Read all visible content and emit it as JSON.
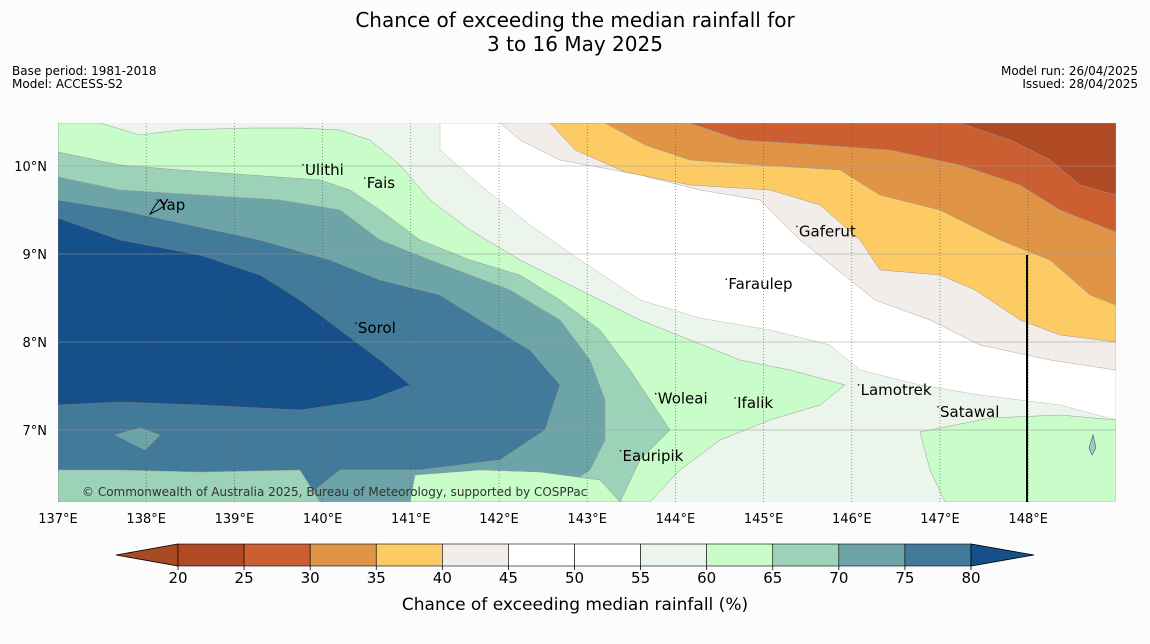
{
  "title_line1": "Chance of exceeding the median rainfall for",
  "title_line2": "3 to 16 May 2025",
  "base_period": "Base period: 1981-2018",
  "model": "Model: ACCESS-S2",
  "model_run": "Model run: 26/04/2025",
  "issued": "Issued: 28/04/2025",
  "copyright": "© Commonwealth of Australia 2025, Bureau of Meteorology, supported by COSPPac",
  "lon_ticks": [
    "137°E",
    "138°E",
    "139°E",
    "140°E",
    "141°E",
    "142°E",
    "143°E",
    "144°E",
    "145°E",
    "146°E",
    "147°E",
    "148°E"
  ],
  "lat_ticks": [
    "10°N",
    "9°N",
    "8°N",
    "7°N"
  ],
  "places": [
    {
      "name": "Ulithi",
      "lon": 139.8,
      "lat": 9.9
    },
    {
      "name": "Fais",
      "lon": 140.5,
      "lat": 9.75
    },
    {
      "name": "Yap",
      "lon": 138.15,
      "lat": 9.5
    },
    {
      "name": "Gaferut",
      "lon": 145.4,
      "lat": 9.2
    },
    {
      "name": "Faraulep",
      "lon": 144.6,
      "lat": 8.6
    },
    {
      "name": "Sorol",
      "lon": 140.4,
      "lat": 8.1
    },
    {
      "name": "Lamotrek",
      "lon": 146.1,
      "lat": 7.4
    },
    {
      "name": "Woleai",
      "lon": 143.8,
      "lat": 7.3
    },
    {
      "name": "Ifalik",
      "lon": 144.7,
      "lat": 7.25
    },
    {
      "name": "Satawal",
      "lon": 147.0,
      "lat": 7.15
    },
    {
      "name": "Eauripik",
      "lon": 143.4,
      "lat": 6.65
    }
  ],
  "colorbar": {
    "ticks": [
      "20",
      "25",
      "30",
      "35",
      "40",
      "45",
      "50",
      "55",
      "60",
      "65",
      "70",
      "75",
      "80"
    ],
    "label": "Chance of exceeding median rainfall (%)",
    "colors": [
      "#a84a24",
      "#b34c25",
      "#cc5f31",
      "#e09446",
      "#fccb64",
      "#f2ede8",
      "#ffffff",
      "#ffffff",
      "#ecf5ec",
      "#c8fcc8",
      "#9cd2b8",
      "#6ca4a8",
      "#427a9a",
      "#16508a",
      "#16508a"
    ]
  }
}
